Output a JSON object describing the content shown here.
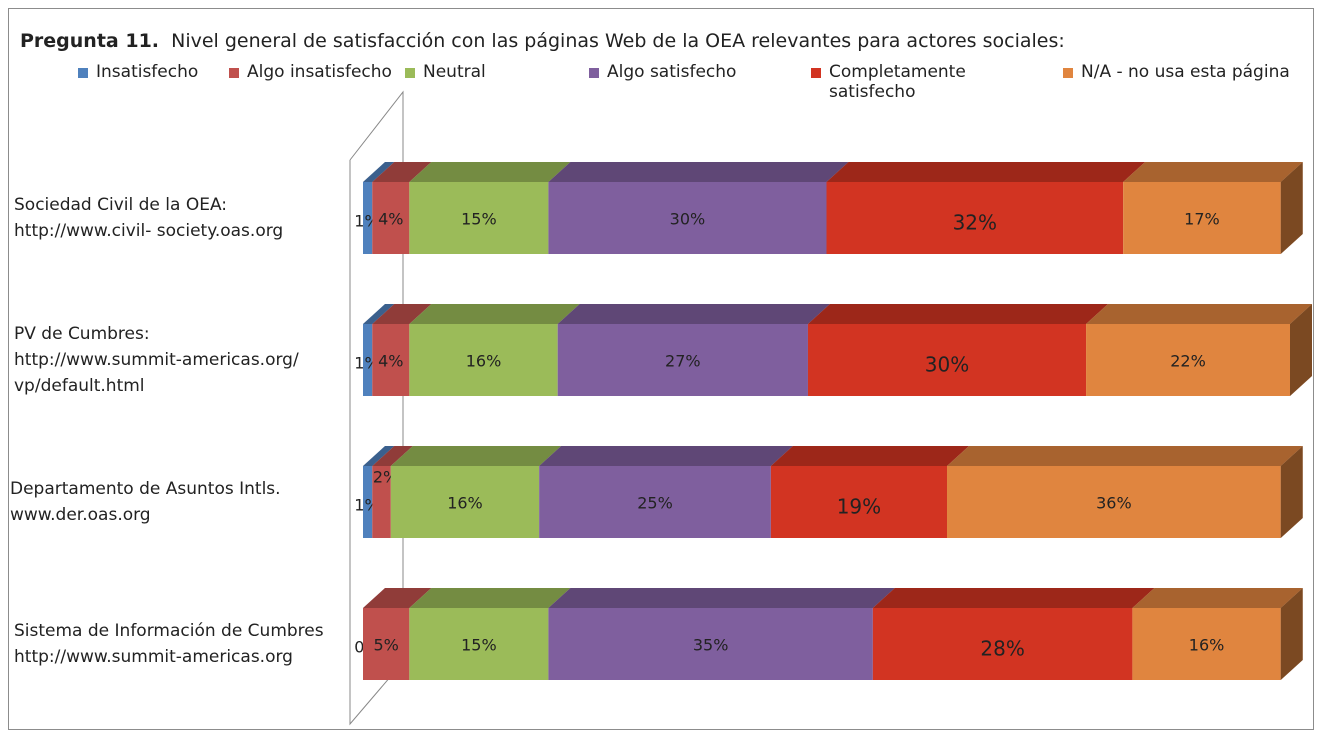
{
  "chart_data": {
    "type": "bar",
    "orientation": "horizontal",
    "stacked": true,
    "title_label": "Pregunta 11.",
    "title": "Nivel general de satisfacción con las páginas Web de la OEA relevantes para actores sociales:",
    "categories": [
      "Sociedad Civil de la OEA:\nhttp://www.civil- society.oas.org",
      "PV de Cumbres:\nhttp://www.summit-americas.org/\nvp/default.html",
      "Departamento de Asuntos Intls.\nwww.der.oas.org",
      "Sistema de Información de Cumbres\nhttp://www.summit-americas.org"
    ],
    "xlim": [
      0,
      100
    ],
    "series": [
      {
        "name": "Insatisfecho",
        "color": "#4f81bd",
        "values": [
          1,
          1,
          1,
          0
        ],
        "value_labels": [
          "1%",
          "1%",
          "1%",
          "0%"
        ]
      },
      {
        "name": "Algo insatisfecho",
        "color": "#c0504d",
        "values": [
          4,
          4,
          2,
          5
        ],
        "value_labels": [
          "4%",
          "4%",
          "2%",
          "5%"
        ]
      },
      {
        "name": "Neutral",
        "color": "#9bbb59",
        "values": [
          15,
          16,
          16,
          15
        ],
        "value_labels": [
          "15%",
          "16%",
          "16%",
          "15%"
        ]
      },
      {
        "name": "Algo satisfecho",
        "color": "#7f5f9e",
        "values": [
          30,
          27,
          25,
          35
        ],
        "value_labels": [
          "30%",
          "27%",
          "25%",
          "35%"
        ]
      },
      {
        "name": "Completamente satisfecho",
        "color": "#d23422",
        "values": [
          32,
          30,
          19,
          28
        ],
        "value_labels": [
          "32%",
          "30%",
          "19%",
          "28%"
        ]
      },
      {
        "name": "N/A - no usa esta página",
        "color": "#e0853f",
        "values": [
          17,
          22,
          36,
          16
        ],
        "value_labels": [
          "17%",
          "22%",
          "36%",
          "16%"
        ]
      }
    ]
  }
}
